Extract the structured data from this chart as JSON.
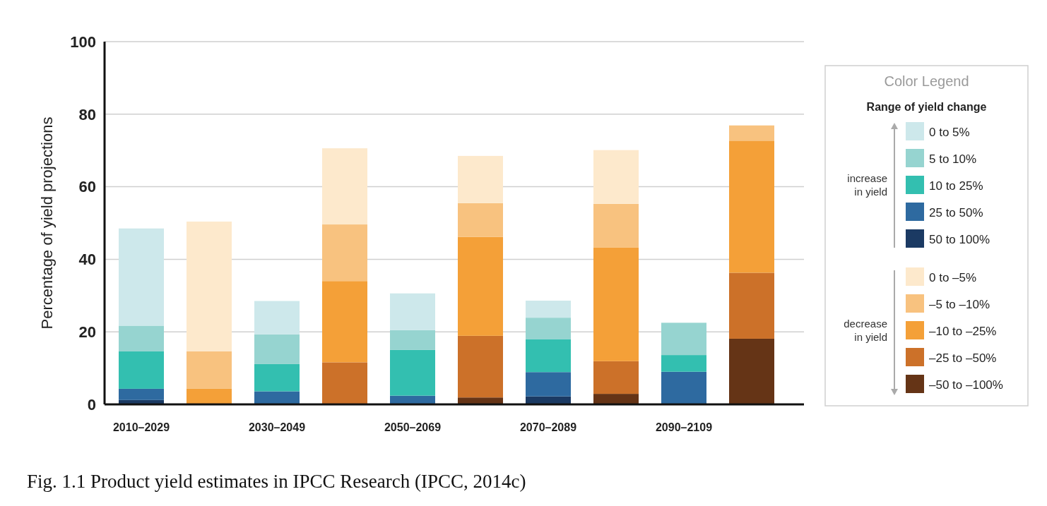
{
  "chart_data": {
    "type": "bar",
    "stacked": true,
    "categories": [
      "2010–2029",
      null,
      "2030–2049",
      null,
      "2050–2069",
      null,
      "2070–2089",
      null,
      "2090–2109",
      null
    ],
    "ylabel": "Percentage of yield projections",
    "legend_title": "Range of yield change",
    "ylim": [
      0,
      100
    ],
    "yticks": [
      0,
      20,
      40,
      60,
      80,
      100
    ],
    "grid": "y",
    "legend": "right",
    "annotations": [
      "Color Legend",
      "increase in yield",
      "decrease in yield",
      "Fig. 1.1  Product yield estimates in IPCC Research (IPCC, 2014c)"
    ],
    "series": [
      {
        "name": "50 to 100%",
        "color": "#1b3a63",
        "values": [
          1.2,
          null,
          0,
          null,
          0,
          null,
          2.2,
          null,
          0,
          null
        ]
      },
      {
        "name": "25 to 50%",
        "color": "#2e6aa0",
        "values": [
          3.1,
          null,
          3.6,
          null,
          2.4,
          null,
          6.7,
          null,
          9.0,
          null
        ]
      },
      {
        "name": "10 to 25%",
        "color": "#33bfb0",
        "values": [
          10.3,
          null,
          7.5,
          null,
          12.6,
          null,
          9.1,
          null,
          4.6,
          null
        ]
      },
      {
        "name": "5 to 10%",
        "color": "#96d4d0",
        "values": [
          7.1,
          null,
          8.2,
          null,
          5.5,
          null,
          5.9,
          null,
          8.9,
          null
        ]
      },
      {
        "name": "0 to 5%",
        "color": "#cde8eb",
        "values": [
          26.8,
          null,
          9.2,
          null,
          10.1,
          null,
          4.7,
          null,
          0,
          null
        ]
      },
      {
        "name": "–50 to –100%",
        "color": "#653416",
        "values": [
          null,
          0,
          null,
          0,
          null,
          1.9,
          null,
          2.9,
          null,
          18.1
        ]
      },
      {
        "name": "–25 to –50%",
        "color": "#cc7129",
        "values": [
          null,
          0,
          null,
          11.6,
          null,
          17.0,
          null,
          9.0,
          null,
          18.2
        ]
      },
      {
        "name": "–10 to –25%",
        "color": "#f4a038",
        "values": [
          null,
          4.3,
          null,
          22.4,
          null,
          27.3,
          null,
          31.4,
          null,
          36.4
        ]
      },
      {
        "name": "–5 to –10%",
        "color": "#f8c27f",
        "values": [
          null,
          10.3,
          null,
          15.6,
          null,
          9.3,
          null,
          12.0,
          null,
          4.2
        ]
      },
      {
        "name": "0 to –5%",
        "color": "#fde9cc",
        "values": [
          null,
          35.8,
          null,
          21.0,
          null,
          13.0,
          null,
          14.8,
          null,
          0
        ]
      }
    ]
  }
}
